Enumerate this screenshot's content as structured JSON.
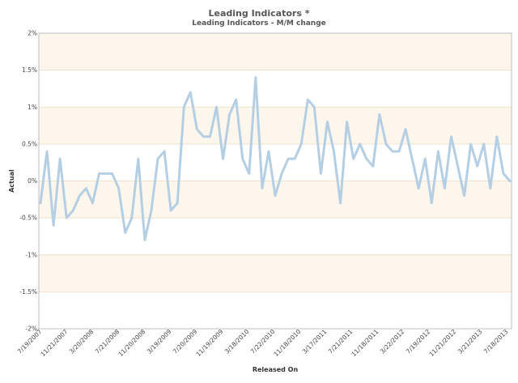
{
  "chart_data": {
    "type": "line",
    "title": "Leading Indicators *",
    "subtitle": "Leading Indicators - M/M change",
    "xlabel": "Released On",
    "ylabel": "Actual",
    "ylim": [
      -2,
      2
    ],
    "y_ticks": [
      "-2%",
      "-1.5%",
      "-1%",
      "-0.5%",
      "0%",
      "0.5%",
      "1%",
      "1.5%",
      "2%"
    ],
    "y_tick_values": [
      -2,
      -1.5,
      -1,
      -0.5,
      0,
      0.5,
      1,
      1.5,
      2
    ],
    "x_ticks": [
      "7/19/2007",
      "11/21/2007",
      "3/20/2008",
      "7/21/2008",
      "11/20/2008",
      "3/19/2009",
      "7/20/2009",
      "11/19/2009",
      "3/18/2010",
      "7/22/2010",
      "11/18/2010",
      "3/17/2011",
      "7/21/2011",
      "11/18/2011",
      "3/22/2012",
      "7/19/2012",
      "11/21/2012",
      "3/21/2013",
      "7/18/2013"
    ],
    "grid": true,
    "bands": "alternating",
    "series": [
      {
        "color": "#b4cfe4",
        "values": [
          -0.3,
          0.4,
          -0.6,
          0.3,
          -0.5,
          -0.4,
          -0.2,
          -0.1,
          -0.3,
          0.1,
          0.1,
          0.1,
          -0.1,
          -0.7,
          -0.5,
          0.3,
          -0.8,
          -0.4,
          0.3,
          0.4,
          -0.4,
          -0.3,
          1.0,
          1.2,
          0.7,
          0.6,
          0.6,
          1.0,
          0.3,
          0.9,
          1.1,
          0.3,
          0.1,
          1.4,
          -0.1,
          0.4,
          -0.2,
          0.1,
          0.3,
          0.3,
          0.5,
          1.1,
          1.0,
          0.1,
          0.8,
          0.4,
          -0.3,
          0.8,
          0.3,
          0.5,
          0.3,
          0.2,
          0.9,
          0.5,
          0.4,
          0.4,
          0.7,
          0.3,
          -0.1,
          0.3,
          -0.3,
          0.4,
          -0.1,
          0.6,
          0.2,
          -0.2,
          0.5,
          0.2,
          0.5,
          -0.1,
          0.6,
          0.1,
          0.0
        ]
      }
    ]
  }
}
